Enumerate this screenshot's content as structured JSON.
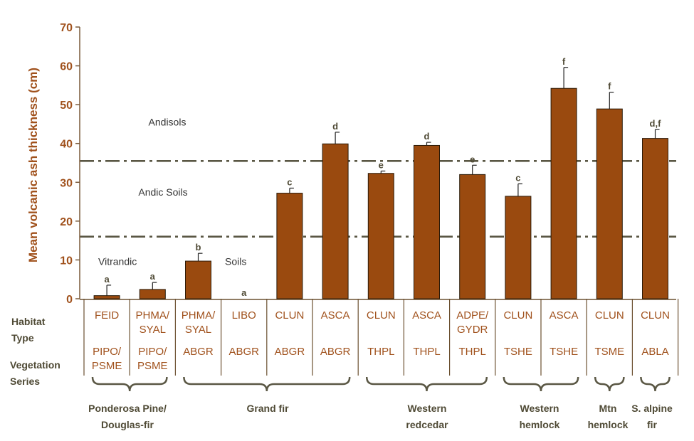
{
  "chart_data": {
    "type": "bar",
    "ylabel": "Mean volcanic ash thickness (cm)",
    "ylim": [
      0,
      70
    ],
    "yticks": [
      0,
      10,
      20,
      30,
      40,
      50,
      60,
      70
    ],
    "bar_color": "#9a4a0f",
    "text_color": "#a0511c",
    "label_color": "#4f4a35",
    "line_color": "#5a5744",
    "bars": [
      {
        "habitat": "FEID",
        "series": "PIPO/\nPSME",
        "value": 0.8,
        "error": 2.7,
        "letter": "a"
      },
      {
        "habitat": "PHMA/\nSYAL",
        "series": "PIPO/\nPSME",
        "value": 2.4,
        "error": 1.8,
        "letter": "a"
      },
      {
        "habitat": "PHMA/\nSYAL",
        "series": "ABGR",
        "value": 9.7,
        "error": 2.0,
        "letter": "b"
      },
      {
        "habitat": "LIBO",
        "series": "ABGR",
        "value": 0,
        "error": 0,
        "letter": "a"
      },
      {
        "habitat": "CLUN",
        "series": "ABGR",
        "value": 27.2,
        "error": 1.3,
        "letter": "c"
      },
      {
        "habitat": "ASCA",
        "series": "ABGR",
        "value": 39.9,
        "error": 3.0,
        "letter": "d"
      },
      {
        "habitat": "CLUN",
        "series": "THPL",
        "value": 32.3,
        "error": 0.6,
        "letter": "e"
      },
      {
        "habitat": "ASCA",
        "series": "THPL",
        "value": 39.5,
        "error": 0.8,
        "letter": "d"
      },
      {
        "habitat": "ADPE/\nGYDR",
        "series": "THPL",
        "value": 32.0,
        "error": 2.4,
        "letter": "e"
      },
      {
        "habitat": "CLUN",
        "series": "TSHE",
        "value": 26.4,
        "error": 3.2,
        "letter": "c"
      },
      {
        "habitat": "ASCA",
        "series": "TSHE",
        "value": 54.2,
        "error": 5.4,
        "letter": "f"
      },
      {
        "habitat": "CLUN",
        "series": "TSME",
        "value": 48.9,
        "error": 4.3,
        "letter": "f"
      },
      {
        "habitat": "CLUN",
        "series": "ABLA",
        "value": 41.3,
        "error": 2.3,
        "letter": "d,f"
      }
    ],
    "reference_lines": [
      {
        "value": 35.5
      },
      {
        "value": 16.0
      }
    ],
    "zone_labels": [
      {
        "text": "Andisols",
        "value": 45.5
      },
      {
        "text": "Andic Soils",
        "value": 27.5
      },
      {
        "text": "Vitrandic",
        "value": 9.6
      },
      {
        "text": "Soils",
        "value": 9.6
      }
    ],
    "row_labels": {
      "habitat": "Habitat\nType",
      "series": "Vegetation\nSeries"
    },
    "groups": [
      {
        "label": "Ponderosa Pine/\nDouglas-fir",
        "from": 0,
        "to": 1
      },
      {
        "label": "Grand fir",
        "from": 2,
        "to": 5
      },
      {
        "label": "Western\nredcedar",
        "from": 6,
        "to": 8
      },
      {
        "label": "Western\nhemlock",
        "from": 9,
        "to": 10
      },
      {
        "label": "Mtn\nhemlock",
        "from": 11,
        "to": 11
      },
      {
        "label": "S. alpine\nfir",
        "from": 12,
        "to": 12
      }
    ]
  }
}
